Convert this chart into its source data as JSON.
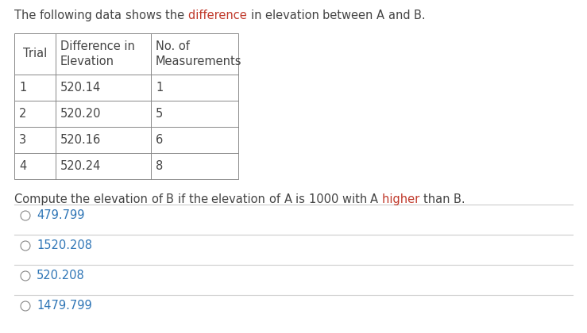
{
  "title": "The following data shows the difference in elevation between A and B.",
  "highlight_words_title": [
    "difference"
  ],
  "highlight_words_question": [
    "higher"
  ],
  "highlight_color": "#c0392b",
  "normal_color": "#444444",
  "table_headers": [
    "Trial",
    "Difference in\nElevation",
    "No. of\nMeasurements"
  ],
  "table_rows": [
    [
      "1",
      "520.14",
      "1"
    ],
    [
      "2",
      "520.20",
      "5"
    ],
    [
      "3",
      "520.16",
      "6"
    ],
    [
      "4",
      "520.24",
      "8"
    ]
  ],
  "question": "Compute the elevation of B if the elevation of A is 1000 with A higher than B.",
  "choices": [
    "479.799",
    "1520.208",
    "520.208",
    "1479.799"
  ],
  "choice_color": "#2e75b6",
  "bg_color": "#ffffff",
  "table_border_color": "#888888",
  "font_size": 10.5,
  "choice_line_color": "#cccccc",
  "circle_color": "#888888"
}
